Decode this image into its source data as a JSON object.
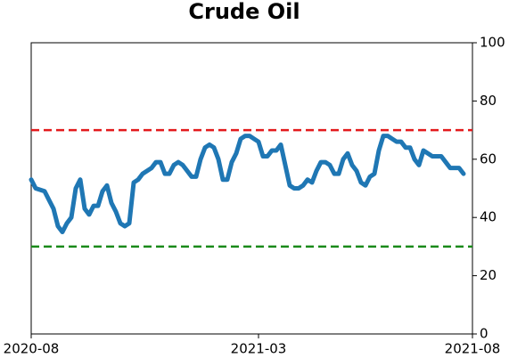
{
  "chart_data": {
    "type": "line",
    "title": "Crude Oil",
    "categories": [
      "2020-08",
      null,
      null,
      null,
      null,
      null,
      null,
      null,
      null,
      null,
      null,
      null,
      null,
      null,
      null,
      null,
      null,
      null,
      null,
      null,
      null,
      null,
      null,
      null,
      null,
      null,
      null,
      null,
      null,
      null,
      null,
      null,
      null,
      null,
      null,
      null,
      null,
      null,
      null,
      null,
      null,
      null,
      null,
      null,
      null,
      null,
      null,
      null,
      null,
      null,
      null,
      "2021-03",
      null,
      null,
      null,
      null,
      null,
      null,
      null,
      null,
      null,
      null,
      null,
      null,
      null,
      null,
      null,
      null,
      null,
      null,
      null,
      null,
      null,
      null,
      null,
      null,
      null,
      null,
      null,
      null,
      null,
      null,
      null,
      null,
      null,
      null,
      null,
      null,
      null,
      null,
      null,
      null,
      null,
      null,
      null,
      null,
      null,
      null,
      null,
      "2021-08"
    ],
    "series": [
      {
        "color": "#1f77b4",
        "values": [
          53,
          50,
          49.5,
          49,
          46,
          43,
          37,
          35,
          38,
          40,
          50,
          53,
          43,
          41,
          44,
          44,
          49,
          51,
          45,
          42,
          38,
          37,
          38,
          52,
          53,
          55,
          56,
          57,
          59,
          59,
          55,
          55,
          58,
          59,
          58,
          56,
          54,
          54,
          60,
          64,
          65,
          64,
          60,
          53,
          53,
          59,
          62,
          67,
          68,
          68,
          67,
          66,
          61,
          61,
          63,
          63,
          65,
          58,
          51,
          50,
          50,
          51,
          53,
          52,
          56,
          59,
          59,
          58,
          55,
          55,
          60,
          62,
          58,
          56,
          52,
          51,
          54,
          55,
          63,
          68,
          68,
          67,
          66,
          66,
          64,
          64,
          60,
          58,
          63,
          62,
          61,
          61,
          61,
          59,
          57,
          57,
          57,
          55,
          null,
          null
        ]
      }
    ],
    "hlines": [
      {
        "value": 70,
        "color": "#e31a1c"
      },
      {
        "value": 30,
        "color": "#1a8a1a"
      }
    ],
    "ylim": [
      0,
      100
    ],
    "yticks": [
      0,
      20,
      40,
      60,
      80,
      100
    ],
    "y_axis_side": "right"
  }
}
